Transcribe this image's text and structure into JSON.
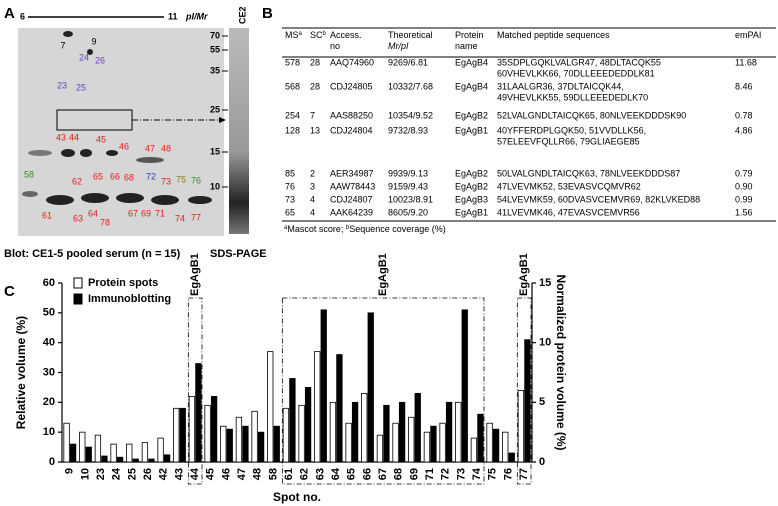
{
  "panel_a": {
    "label": "A",
    "pi_left": "6",
    "pi_right": "11",
    "axis_label": "pI/Mr",
    "mw_markers": [
      "70",
      "55",
      "35",
      "25",
      "15",
      "10"
    ],
    "lane_label": "CE2",
    "spots": [
      {
        "label": "7",
        "color": "#000000"
      },
      {
        "label": "9",
        "color": "#000000"
      },
      {
        "label": "24",
        "color": "#6a3fc8"
      },
      {
        "label": "26",
        "color": "#6a3fc8"
      },
      {
        "label": "23",
        "color": "#6a3fc8"
      },
      {
        "label": "25",
        "color": "#6a3fc8"
      },
      {
        "label": "43",
        "color": "#e0201c"
      },
      {
        "label": "44",
        "color": "#e0201c"
      },
      {
        "label": "45",
        "color": "#e0201c"
      },
      {
        "label": "46",
        "color": "#e0201c"
      },
      {
        "label": "47",
        "color": "#e0201c"
      },
      {
        "label": "48",
        "color": "#e0201c"
      },
      {
        "label": "58",
        "color": "#3a8a2a"
      },
      {
        "label": "62",
        "color": "#e0201c"
      },
      {
        "label": "65",
        "color": "#e0201c"
      },
      {
        "label": "66",
        "color": "#e0201c"
      },
      {
        "label": "68",
        "color": "#e0201c"
      },
      {
        "label": "72",
        "color": "#2c3cc8"
      },
      {
        "label": "73",
        "color": "#e0201c"
      },
      {
        "label": "75",
        "color": "#8a7a20"
      },
      {
        "label": "76",
        "color": "#3a8a2a"
      },
      {
        "label": "61",
        "color": "#e0201c"
      },
      {
        "label": "63",
        "color": "#e0201c"
      },
      {
        "label": "64",
        "color": "#e0201c"
      },
      {
        "label": "78",
        "color": "#e0201c"
      },
      {
        "label": "67",
        "color": "#e0201c"
      },
      {
        "label": "69",
        "color": "#e0201c"
      },
      {
        "label": "71",
        "color": "#e0201c"
      },
      {
        "label": "74",
        "color": "#e0201c"
      },
      {
        "label": "77",
        "color": "#e0201c"
      }
    ],
    "caption": "Blot: CE1-5 pooled serum (n = 15)",
    "sds_caption": "SDS-PAGE"
  },
  "panel_b": {
    "label": "B",
    "header": [
      {
        "lines": [
          "MS"
        ],
        "sup": "a"
      },
      {
        "lines": [
          "SC"
        ],
        "sup": "b"
      },
      {
        "lines": [
          "Access.",
          "no"
        ]
      },
      {
        "lines": [
          "Theoretical",
          "Mr/pI"
        ]
      },
      {
        "lines": [
          "Protein",
          "name"
        ]
      },
      {
        "lines": [
          "Matched peptide sequences"
        ]
      },
      {
        "lines": [
          "emPAI"
        ]
      }
    ],
    "rows": [
      {
        "ms": "578",
        "sc": "28",
        "access": "AAQ74960",
        "theoretical": "9269/6.81",
        "protein": "EgAgB4",
        "peptides": [
          "35SDPLGQKLVALGR47, 48DLTACQK55",
          "60VHEVLKK66, 70DLLEEEDEDDLK81"
        ],
        "empai": "11.68"
      },
      {
        "ms": "568",
        "sc": "28",
        "access": "CDJ24805",
        "theoretical": "10332/7.68",
        "protein": "EgAgB4",
        "peptides": [
          "31LAALGR36, 37DLTAICQK44,",
          "49VHEVLKK55, 59DLLEEEDEDLK70"
        ],
        "empai": "8.46"
      },
      {
        "ms": "254",
        "sc": "7",
        "access": "AAS88250",
        "theoretical": "10354/9.52",
        "protein": "EgAgB2",
        "peptides": [
          "52LVALGNDLTAICQK65, 80NLVEEKDDDSK90"
        ],
        "empai": "0.78"
      },
      {
        "ms": "128",
        "sc": "13",
        "access": "CDJ24804",
        "theoretical": "9732/8.93",
        "protein": "EgAgB1",
        "peptides": [
          "40YFFERDPLGQK50, 51VVDLLK56,",
          "57ELEEVFQLLR66, 79GLIAEGE85"
        ],
        "empai": "4.86"
      },
      {
        "ms": "85",
        "sc": "2",
        "access": "AER34987",
        "theoretical": "9939/9.13",
        "protein": "EgAgB2",
        "peptides": [
          "50LVALGNDLTAICQK63, 78NLVEEKDDDS87"
        ],
        "empai": "0.79"
      },
      {
        "ms": "76",
        "sc": "3",
        "access": "AAW78443",
        "theoretical": "9159/9.43",
        "protein": "EgAgB2",
        "peptides": [
          "47LVEVMK52, 53EVASVCQMVR62"
        ],
        "empai": "0.90"
      },
      {
        "ms": "73",
        "sc": "4",
        "access": "CDJ24807",
        "theoretical": "10023/8.91",
        "protein": "EgAgB3",
        "peptides": [
          "54LVEVMK59, 60DVASVCEMVR69, 82KLVKED88"
        ],
        "empai": "0.99"
      },
      {
        "ms": "65",
        "sc": "4",
        "access": "AAK64239",
        "theoretical": "8605/9.20",
        "protein": "EgAgB1",
        "peptides": [
          "41LVEVMK46, 47EVASVCEMVR56"
        ],
        "empai": "1.56"
      }
    ],
    "footnote": [
      {
        "sup": "a",
        "text": "Mascot score; "
      },
      {
        "sup": "b",
        "text": "Sequence coverage (%)"
      }
    ]
  },
  "chart_data": {
    "type": "bar",
    "panel_label": "C",
    "x_label": "Spot no.",
    "y_label": "Relative volume (%)",
    "y2_label": "Normalized protein volume (%)",
    "categories": [
      "9",
      "10",
      "23",
      "24",
      "25",
      "26",
      "42",
      "43",
      "44",
      "45",
      "46",
      "47",
      "48",
      "58",
      "61",
      "62",
      "63",
      "64",
      "65",
      "66",
      "67",
      "68",
      "69",
      "71",
      "72",
      "73",
      "74",
      "75",
      "76",
      "77"
    ],
    "series": [
      {
        "name": "Protein spots",
        "color": "#ffffff",
        "values": [
          13,
          10,
          9,
          6,
          6,
          6.5,
          8,
          18,
          22,
          19,
          12,
          15,
          17,
          37,
          18,
          19,
          37,
          20,
          13,
          23,
          9,
          13,
          15,
          10,
          13,
          20,
          8,
          13,
          10,
          24
        ]
      },
      {
        "name": "Immunoblotting",
        "color": "#000000",
        "axis": "y2",
        "values": [
          1.5,
          1.25,
          0.5,
          0.4,
          0.25,
          0.25,
          0.6,
          4.5,
          8.25,
          5.5,
          2.75,
          3,
          2.5,
          3,
          7,
          6.25,
          12.75,
          9,
          5,
          12.5,
          4.75,
          5,
          5.75,
          3,
          5,
          12.75,
          4,
          2.75,
          0.75,
          10.25
        ]
      }
    ],
    "ylim": [
      0,
      60
    ],
    "yticks": [
      0,
      10,
      20,
      30,
      40,
      50,
      60
    ],
    "y2lim": [
      0,
      15
    ],
    "y2ticks": [
      0,
      5,
      10,
      15
    ],
    "annotations": [
      "EgAgB1",
      "EgAgB1",
      "EgAgB1"
    ],
    "legend": "upper left"
  }
}
